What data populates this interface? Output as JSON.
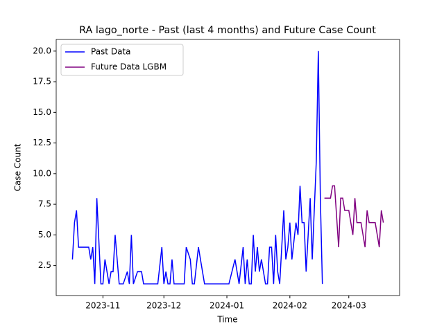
{
  "chart_data": {
    "type": "line",
    "title": "RA lago_norte - Past (last 4 months) and Future Case Count",
    "x_label": "Time",
    "y_label": "Case Count",
    "series": [
      {
        "name": "Past Data",
        "color": "#0000ff",
        "x": [
          "2023-10-17",
          "2023-10-18",
          "2023-10-19",
          "2023-10-20",
          "2023-10-25",
          "2023-10-26",
          "2023-10-27",
          "2023-10-28",
          "2023-10-29",
          "2023-10-31",
          "2023-11-01",
          "2023-11-02",
          "2023-11-04",
          "2023-11-05",
          "2023-11-06",
          "2023-11-07",
          "2023-11-09",
          "2023-11-11",
          "2023-11-13",
          "2023-11-14",
          "2023-11-15",
          "2023-11-16",
          "2023-11-18",
          "2023-11-20",
          "2023-11-21",
          "2023-11-28",
          "2023-11-30",
          "2023-12-01",
          "2023-12-02",
          "2023-12-03",
          "2023-12-04",
          "2023-12-05",
          "2023-12-06",
          "2023-12-11",
          "2023-12-12",
          "2023-12-14",
          "2023-12-15",
          "2023-12-16",
          "2023-12-18",
          "2023-12-21",
          "2024-01-02",
          "2024-01-05",
          "2024-01-07",
          "2024-01-09",
          "2024-01-10",
          "2024-01-11",
          "2024-01-12",
          "2024-01-13",
          "2024-01-14",
          "2024-01-15",
          "2024-01-16",
          "2024-01-17",
          "2024-01-18",
          "2024-01-20",
          "2024-01-21",
          "2024-01-22",
          "2024-01-23",
          "2024-01-24",
          "2024-01-25",
          "2024-01-26",
          "2024-01-27",
          "2024-01-29",
          "2024-01-30",
          "2024-01-31",
          "2024-02-01",
          "2024-02-02",
          "2024-02-04",
          "2024-02-05",
          "2024-02-06",
          "2024-02-07",
          "2024-02-08",
          "2024-02-09",
          "2024-02-10",
          "2024-02-11",
          "2024-02-12",
          "2024-02-14",
          "2024-02-15",
          "2024-02-16",
          "2024-02-17"
        ],
        "values": [
          3,
          6,
          7,
          4,
          4,
          3,
          4,
          1,
          8,
          1,
          1,
          3,
          1,
          2,
          2,
          5,
          1,
          1,
          2,
          1,
          5,
          1,
          2,
          2,
          1,
          1,
          4,
          1,
          2,
          1,
          1,
          3,
          1,
          1,
          4,
          3,
          1,
          1,
          4,
          1,
          1,
          3,
          1,
          4,
          1,
          3,
          1,
          1,
          5,
          2,
          4,
          2,
          3,
          1,
          1,
          4,
          4,
          1,
          5,
          2,
          1,
          7,
          3,
          4,
          6,
          3,
          6,
          5,
          9,
          6,
          6,
          2,
          5,
          8,
          3,
          11,
          20,
          8,
          1
        ]
      },
      {
        "name": "Future Data LGBM",
        "color": "#800080",
        "x": [
          "2024-02-18",
          "2024-02-21",
          "2024-02-22",
          "2024-02-23",
          "2024-02-25",
          "2024-02-26",
          "2024-02-27",
          "2024-02-28",
          "2024-03-01",
          "2024-03-03",
          "2024-03-04",
          "2024-03-05",
          "2024-03-07",
          "2024-03-09",
          "2024-03-10",
          "2024-03-11",
          "2024-03-14",
          "2024-03-16",
          "2024-03-17",
          "2024-03-18"
        ],
        "values": [
          8,
          8,
          9,
          9,
          4,
          8,
          8,
          7,
          7,
          5,
          8,
          6,
          6,
          4,
          7,
          6,
          6,
          4,
          7,
          6
        ]
      }
    ],
    "xlim": [
      "2023-10-09",
      "2024-03-26"
    ],
    "xticks": [
      {
        "value": "2023-11-01",
        "label": "2023-11"
      },
      {
        "value": "2023-12-01",
        "label": "2023-12"
      },
      {
        "value": "2024-01-01",
        "label": "2024-01"
      },
      {
        "value": "2024-02-01",
        "label": "2024-02"
      },
      {
        "value": "2024-03-01",
        "label": "2024-03"
      }
    ],
    "ylim": [
      0.05,
      20.95
    ],
    "yticks": [
      2.5,
      {
        "value": 5,
        "label": "5.0"
      },
      7.5,
      {
        "value": 10,
        "label": "10.0"
      },
      12.5,
      {
        "value": 15,
        "label": "15.0"
      },
      17.5,
      {
        "value": 20,
        "label": "20.0"
      }
    ],
    "legend": "upper left"
  }
}
